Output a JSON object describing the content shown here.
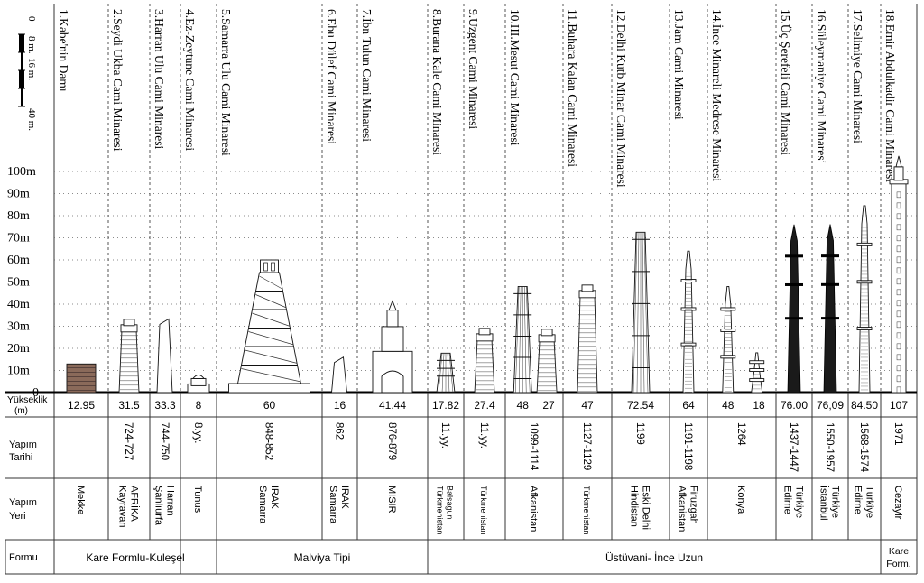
{
  "scale": {
    "tick_labels": [
      "0",
      "8 m.",
      "16 m.",
      "40 m."
    ]
  },
  "y_axis": {
    "labels": [
      "0",
      "10m",
      "20m",
      "30m",
      "40m",
      "50m",
      "60m",
      "70m",
      "80m",
      "90m",
      "100m"
    ],
    "max_m": 100
  },
  "rows": {
    "height": "Yükseklik (m)",
    "year": "Yapım Tarihi",
    "place": "Yapım Yeri",
    "form": "Formu"
  },
  "minarets": [
    {
      "title": "1.Kabe'nin Damı",
      "heights": [
        "12.95"
      ],
      "year": "",
      "place": [
        "Mekke"
      ]
    },
    {
      "title": "2.Seydi Ukba Cami Minaresi",
      "heights": [
        "31.5"
      ],
      "year": "724-727",
      "place": [
        "Kayravan",
        "AFRİKA"
      ]
    },
    {
      "title": "3.Harran Ulu Cami Minaresi",
      "heights": [
        "33.3"
      ],
      "year": "744-750",
      "place": [
        "Şanlıurfa",
        "Harran"
      ]
    },
    {
      "title": "4.Ez-Zeytune Cami Minaresi",
      "heights": [
        "8"
      ],
      "year": "8.yy.",
      "place": [
        "Tunus"
      ]
    },
    {
      "title": "5.Samarra Ulu Cami Minaresi",
      "heights": [
        "60"
      ],
      "year": "848-852",
      "place": [
        "Samarra",
        "IRAK"
      ]
    },
    {
      "title": "6.Ebu Dülef Cami Minaresi",
      "heights": [
        "16"
      ],
      "year": "862",
      "place": [
        "Samarra",
        "IRAK"
      ]
    },
    {
      "title": "7.İbn Tulun Cami Minaresi",
      "heights": [
        "41.44"
      ],
      "year": "876-879",
      "place": [
        "MISIR"
      ]
    },
    {
      "title": "8.Burana Kale Cami Minaresi",
      "heights": [
        "17.82"
      ],
      "year": "11.yy.",
      "place": [
        "Türkmenistan",
        "Balsagun"
      ]
    },
    {
      "title": "9.Uzgent Cami Minaresi",
      "heights": [
        "27.4"
      ],
      "year": "11.yy.",
      "place": [
        "Türkmenistan"
      ]
    },
    {
      "title": "10.III.Mesut Cami Minaresi",
      "heights": [
        "48",
        "27"
      ],
      "year": "1099-1114",
      "place": [
        "Afkanistan"
      ]
    },
    {
      "title": "11.Buhara Kalan Cami Minaresi",
      "heights": [
        "47"
      ],
      "year": "1127-1129",
      "place": [
        "Türkmenistan"
      ]
    },
    {
      "title": "12.Delhi Kutb Minar Cami Minaresi",
      "heights": [
        "72.54"
      ],
      "year": "1199",
      "place": [
        "Hindistan",
        "Eski Delhi"
      ]
    },
    {
      "title": "13.Jam Cami Minaresi",
      "heights": [
        "64"
      ],
      "year": "1191-1198",
      "place": [
        "Afkanistan",
        "Firuzgah"
      ]
    },
    {
      "title": "14.İnce Minareli Medrese Minaresi",
      "heights": [
        "48",
        "18"
      ],
      "year": "1264",
      "place": [
        "Konya"
      ]
    },
    {
      "title": "15.Üç Şerefeli Cami Minaresi",
      "heights": [
        "76.00"
      ],
      "year": "1437-1447",
      "place": [
        "Edirne",
        "Türkiye"
      ]
    },
    {
      "title": "16.Süleymaniye Cami Minaresi",
      "heights": [
        "76,09"
      ],
      "year": "1550-1957",
      "place": [
        "İstanbul",
        "Türkiye"
      ]
    },
    {
      "title": "17.Selimiye Cami Minaresi",
      "heights": [
        "84.50"
      ],
      "year": "1568-1574",
      "place": [
        "Edirne",
        "Türkiye"
      ]
    },
    {
      "title": "18.Emir Abdulkadir Cami Minaresi",
      "heights": [
        "107"
      ],
      "year": "1971",
      "place": [
        "Cezayir"
      ]
    }
  ],
  "forms": [
    "Kare Formlu-Kuleşel",
    "Malviya Tipi",
    "Üstüvani- İnce Uzun",
    "Kare Form."
  ]
}
